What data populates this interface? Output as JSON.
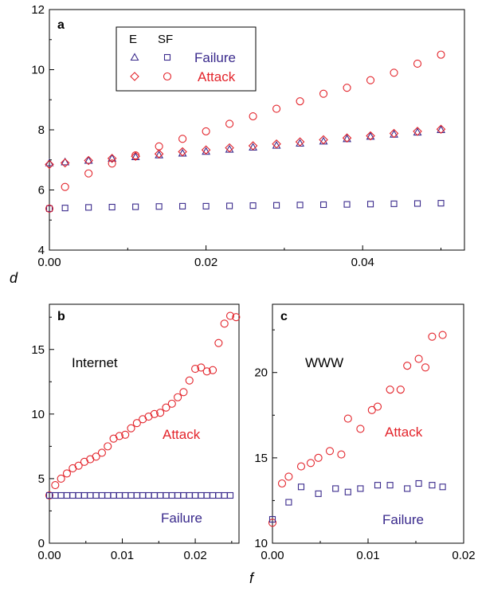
{
  "colors": {
    "failure": "#3a2a8c",
    "attack": "#e3242b",
    "axis": "#000000",
    "text": "#000000"
  },
  "shared_ylabel": "d",
  "shared_xlabel": "f",
  "chart_data": [
    {
      "panel": "a",
      "type": "scatter",
      "title": "",
      "xlabel": "",
      "ylabel": "",
      "xlim": [
        0,
        0.053
      ],
      "ylim": [
        4,
        12
      ],
      "xticks": [
        0.0,
        0.02,
        0.04
      ],
      "xtick_labels": [
        "0.00",
        "0.02",
        "0.04"
      ],
      "yticks": [
        4,
        6,
        8,
        10,
        12
      ],
      "ytick_labels": [
        "4",
        "6",
        "8",
        "10",
        "12"
      ],
      "grid": false,
      "legend": {
        "placement": "top-left",
        "headers": [
          "E",
          "SF"
        ],
        "rows": [
          {
            "label": "Failure",
            "markers": [
              "triangle",
              "square"
            ],
            "color": "failure"
          },
          {
            "label": "Attack",
            "markers": [
              "diamond",
              "circle"
            ],
            "color": "attack"
          }
        ]
      },
      "series": [
        {
          "name": "Failure",
          "network": "E",
          "marker": "triangle",
          "color": "failure",
          "x": [
            0,
            0.002,
            0.005,
            0.008,
            0.011,
            0.014,
            0.017,
            0.02,
            0.023,
            0.026,
            0.029,
            0.032,
            0.035,
            0.038,
            0.041,
            0.044,
            0.047,
            0.05
          ],
          "y": [
            6.9,
            6.93,
            6.98,
            7.05,
            7.1,
            7.16,
            7.22,
            7.28,
            7.35,
            7.42,
            7.48,
            7.55,
            7.62,
            7.7,
            7.78,
            7.85,
            7.92,
            8.0
          ]
        },
        {
          "name": "Attack",
          "network": "E",
          "marker": "diamond",
          "color": "attack",
          "x": [
            0,
            0.002,
            0.005,
            0.008,
            0.011,
            0.014,
            0.017,
            0.02,
            0.023,
            0.026,
            0.029,
            0.032,
            0.035,
            0.038,
            0.041,
            0.044,
            0.047,
            0.05
          ],
          "y": [
            6.85,
            6.9,
            6.98,
            7.05,
            7.12,
            7.2,
            7.27,
            7.33,
            7.4,
            7.47,
            7.53,
            7.6,
            7.67,
            7.73,
            7.8,
            7.88,
            7.95,
            8.02
          ]
        },
        {
          "name": "Failure",
          "network": "SF",
          "marker": "square",
          "color": "failure",
          "x": [
            0,
            0.002,
            0.005,
            0.008,
            0.011,
            0.014,
            0.017,
            0.02,
            0.023,
            0.026,
            0.029,
            0.032,
            0.035,
            0.038,
            0.041,
            0.044,
            0.047,
            0.05
          ],
          "y": [
            5.38,
            5.4,
            5.42,
            5.43,
            5.44,
            5.45,
            5.46,
            5.46,
            5.47,
            5.48,
            5.49,
            5.5,
            5.51,
            5.52,
            5.53,
            5.54,
            5.55,
            5.56
          ]
        },
        {
          "name": "Attack",
          "network": "SF",
          "marker": "circle",
          "color": "attack",
          "x": [
            0,
            0.002,
            0.005,
            0.008,
            0.011,
            0.014,
            0.017,
            0.02,
            0.023,
            0.026,
            0.029,
            0.032,
            0.035,
            0.038,
            0.041,
            0.044,
            0.047,
            0.05
          ],
          "y": [
            5.38,
            6.1,
            6.55,
            6.88,
            7.15,
            7.45,
            7.7,
            7.95,
            8.2,
            8.45,
            8.7,
            8.95,
            9.2,
            9.4,
            9.65,
            9.9,
            10.2,
            10.5
          ]
        }
      ]
    },
    {
      "panel": "b",
      "type": "scatter",
      "title": "",
      "annotation": "Internet",
      "series_labels": [
        {
          "text": "Attack",
          "color": "attack"
        },
        {
          "text": "Failure",
          "color": "failure"
        }
      ],
      "xlabel": "",
      "ylabel": "",
      "xlim": [
        0,
        0.026
      ],
      "ylim": [
        0,
        18.5
      ],
      "xticks": [
        0.0,
        0.01,
        0.02
      ],
      "xtick_labels": [
        "0.00",
        "0.01",
        "0.02"
      ],
      "yticks": [
        0,
        5,
        10,
        15
      ],
      "ytick_labels": [
        "0",
        "5",
        "10",
        "15"
      ],
      "grid": false,
      "series": [
        {
          "name": "Attack",
          "marker": "circle",
          "color": "attack",
          "x": [
            0,
            0.0008,
            0.0016,
            0.0024,
            0.0032,
            0.004,
            0.0048,
            0.0056,
            0.0064,
            0.0072,
            0.008,
            0.0088,
            0.0096,
            0.0104,
            0.0112,
            0.012,
            0.0128,
            0.0136,
            0.0144,
            0.0152,
            0.016,
            0.0168,
            0.0176,
            0.0184,
            0.0192,
            0.02,
            0.0208,
            0.0216,
            0.0224,
            0.0232,
            0.024,
            0.0248
          ],
          "y": [
            3.7,
            4.5,
            5.0,
            5.4,
            5.8,
            6.0,
            6.3,
            6.5,
            6.7,
            7.0,
            7.5,
            8.1,
            8.3,
            8.4,
            8.9,
            9.3,
            9.6,
            9.8,
            10.0,
            10.1,
            10.5,
            10.8,
            11.3,
            11.7,
            12.6,
            13.5,
            13.6,
            13.3,
            13.4,
            15.5,
            17.0,
            17.6
          ]
        },
        {
          "name": "Attack",
          "marker": "circle",
          "color": "attack",
          "x": [
            0.0256
          ],
          "y": [
            17.5
          ]
        },
        {
          "name": "Failure",
          "marker": "square",
          "color": "failure",
          "x": [
            0,
            0.0008,
            0.0016,
            0.0024,
            0.0032,
            0.004,
            0.0048,
            0.0056,
            0.0064,
            0.0072,
            0.008,
            0.0088,
            0.0096,
            0.0104,
            0.0112,
            0.012,
            0.0128,
            0.0136,
            0.0144,
            0.0152,
            0.016,
            0.0168,
            0.0176,
            0.0184,
            0.0192,
            0.02,
            0.0208,
            0.0216,
            0.0224,
            0.0232,
            0.024,
            0.0248
          ],
          "y": [
            3.7,
            3.7,
            3.7,
            3.7,
            3.7,
            3.7,
            3.7,
            3.7,
            3.7,
            3.7,
            3.7,
            3.7,
            3.7,
            3.7,
            3.7,
            3.7,
            3.7,
            3.7,
            3.7,
            3.7,
            3.7,
            3.7,
            3.7,
            3.7,
            3.7,
            3.7,
            3.7,
            3.7,
            3.7,
            3.7,
            3.7,
            3.7
          ]
        }
      ]
    },
    {
      "panel": "c",
      "type": "scatter",
      "title": "",
      "annotation": "WWW",
      "series_labels": [
        {
          "text": "Attack",
          "color": "attack"
        },
        {
          "text": "Failure",
          "color": "failure"
        }
      ],
      "xlabel": "",
      "ylabel": "",
      "xlim": [
        0,
        0.02
      ],
      "ylim": [
        10,
        24
      ],
      "xticks": [
        0.0,
        0.01,
        0.02
      ],
      "xtick_labels": [
        "0.00",
        "0.01",
        "0.02"
      ],
      "yticks": [
        10,
        15,
        20
      ],
      "ytick_labels": [
        "10",
        "15",
        "20"
      ],
      "grid": false,
      "series": [
        {
          "name": "Attack",
          "marker": "circle",
          "color": "attack",
          "x": [
            0,
            0.001,
            0.0017,
            0.003,
            0.004,
            0.0048,
            0.006,
            0.0072,
            0.0079,
            0.0092,
            0.0104,
            0.011,
            0.0123,
            0.0134,
            0.0141,
            0.0153,
            0.016,
            0.0167,
            0.0178
          ],
          "y": [
            11.2,
            13.5,
            13.9,
            14.5,
            14.7,
            15.0,
            15.4,
            15.2,
            17.3,
            16.7,
            17.8,
            18.0,
            19.0,
            19.0,
            20.4,
            20.8,
            20.3,
            22.1,
            22.2
          ]
        },
        {
          "name": "Failure",
          "marker": "square",
          "color": "failure",
          "x": [
            0,
            0.0017,
            0.003,
            0.0048,
            0.0066,
            0.0079,
            0.0092,
            0.011,
            0.0123,
            0.0141,
            0.0153,
            0.0167,
            0.0178
          ],
          "y": [
            11.4,
            12.4,
            13.3,
            12.9,
            13.2,
            13.0,
            13.2,
            13.4,
            13.4,
            13.2,
            13.5,
            13.4,
            13.3
          ]
        }
      ]
    }
  ]
}
